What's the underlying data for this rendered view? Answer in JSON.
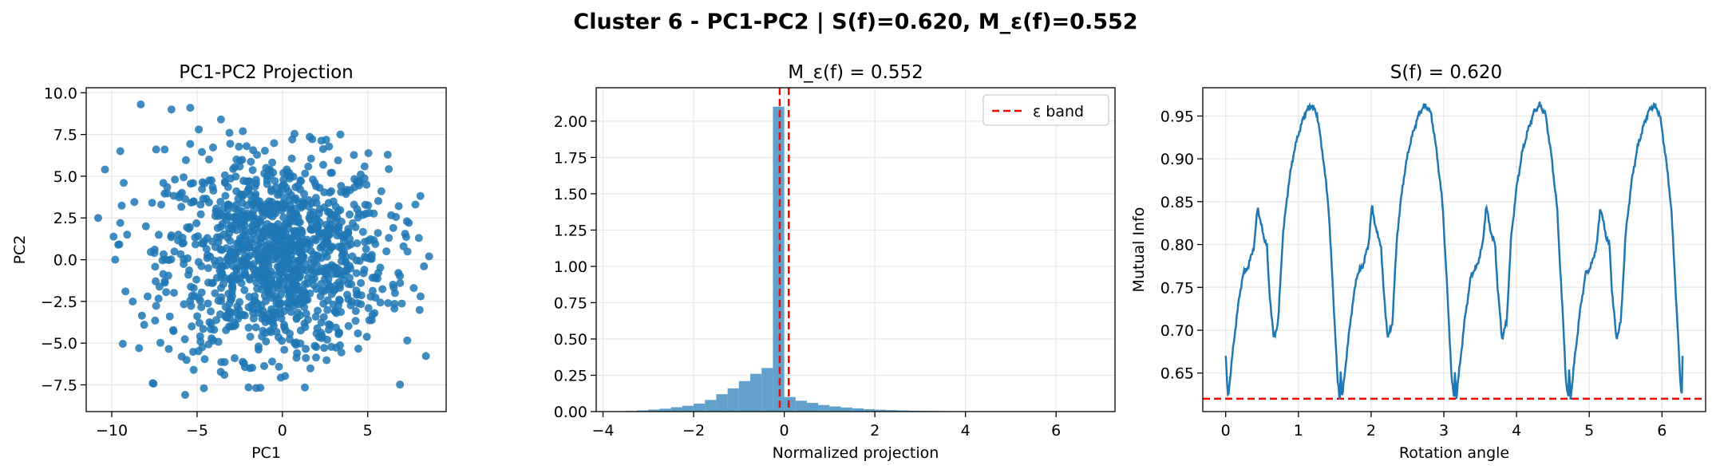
{
  "suptitle": "Cluster 6 - PC1-PC2 | S(f)=0.620, M_ε(f)=0.552",
  "colors": {
    "primary": "#1f77b4",
    "hist": "#62a1cc",
    "band": "#ff0000",
    "grid": "#e8e8e8",
    "axis": "#000000"
  },
  "chart_data": [
    {
      "type": "scatter",
      "title": "PC1-PC2 Projection",
      "xlabel": "PC1",
      "ylabel": "PC2",
      "xlim": [
        -11.5,
        9.6
      ],
      "ylim": [
        -9.1,
        10.3
      ],
      "xticks": [
        -10,
        -5,
        0,
        5
      ],
      "yticks": [
        -7.5,
        -5.0,
        -2.5,
        0.0,
        2.5,
        5.0,
        7.5,
        10.0
      ],
      "xtick_labels": [
        "−10",
        "−5",
        "0",
        "5"
      ],
      "ytick_labels": [
        "−7.5",
        "−5.0",
        "−2.5",
        "0.0",
        "2.5",
        "5.0",
        "7.5",
        "10.0"
      ],
      "grid": true,
      "points": [
        [
          -10.8,
          2.5
        ],
        [
          -10.4,
          5.4
        ],
        [
          -9.8,
          0
        ],
        [
          -9.5,
          6.5
        ],
        [
          -9.5,
          2.2
        ],
        [
          -9.3,
          4.6
        ],
        [
          -9.2,
          -1.9
        ],
        [
          -9.1,
          1.5
        ],
        [
          -8.3,
          9.3
        ],
        [
          -8.1,
          -3.9
        ],
        [
          -8.4,
          -5.3
        ],
        [
          -7.9,
          -2.2
        ],
        [
          -7.6,
          -7.4
        ],
        [
          -7.4,
          6.6
        ],
        [
          -7.1,
          3.3
        ],
        [
          -6.9,
          6.6
        ],
        [
          -6.5,
          9.0
        ],
        [
          -6.9,
          -1.3
        ],
        [
          -6.3,
          4.8
        ],
        [
          -6.1,
          1.5
        ],
        [
          -5.9,
          -5.8
        ],
        [
          -5.7,
          -8.1
        ],
        [
          -5.4,
          9.1
        ],
        [
          -5.2,
          -6.6
        ],
        [
          -4.9,
          7.8
        ],
        [
          -4.8,
          -4.9
        ],
        [
          -4.6,
          -7.7
        ],
        [
          -4.3,
          6.0
        ],
        [
          -4.2,
          -3.1
        ],
        [
          -3.9,
          2.9
        ],
        [
          -3.6,
          8.4
        ],
        [
          -3.4,
          -6.9
        ],
        [
          -3.1,
          7.6
        ],
        [
          -2.8,
          -5.9
        ],
        [
          -2.7,
          4.1
        ],
        [
          -2.3,
          -3.3
        ],
        [
          -2.1,
          6.8
        ],
        [
          -1.9,
          -6.5
        ],
        [
          -1.5,
          1.9
        ],
        [
          -1.2,
          -4.6
        ],
        [
          -0.9,
          5.0
        ],
        [
          -0.6,
          -6.1
        ],
        [
          -0.3,
          3.1
        ],
        [
          0.1,
          -3.9
        ],
        [
          0.4,
          5.2
        ],
        [
          0.8,
          -5.1
        ],
        [
          1.1,
          1.4
        ],
        [
          1.5,
          -3.6
        ],
        [
          1.9,
          4.6
        ],
        [
          2.3,
          -4.7
        ],
        [
          2.6,
          1.1
        ],
        [
          3.1,
          -3.1
        ],
        [
          3.4,
          7.5
        ],
        [
          3.8,
          -2.1
        ],
        [
          4.2,
          3.3
        ],
        [
          4.6,
          -1.4
        ],
        [
          5.1,
          2.8
        ],
        [
          5.4,
          -3.2
        ],
        [
          5.8,
          4.1
        ],
        [
          6.2,
          -2.6
        ],
        [
          6.5,
          1.9
        ],
        [
          6.9,
          -1.4
        ],
        [
          7.3,
          2.3
        ],
        [
          7.7,
          -1.7
        ],
        [
          8.0,
          1.3
        ],
        [
          8.3,
          -0.4
        ],
        [
          8.6,
          0.2
        ],
        [
          8.1,
          -2.2
        ],
        [
          7.8,
          3.3
        ],
        [
          7.1,
          0.8
        ],
        [
          6.8,
          -0.8
        ],
        [
          6.1,
          0.5
        ],
        [
          -3.5,
          -0.4
        ],
        [
          -2.8,
          0.3
        ],
        [
          -1.9,
          -1.1
        ],
        [
          -1.0,
          0.6
        ],
        [
          0.0,
          -0.3
        ],
        [
          0.9,
          0.9
        ],
        [
          1.7,
          -0.6
        ],
        [
          2.5,
          0.4
        ],
        [
          3.4,
          -0.9
        ],
        [
          4.1,
          0.2
        ],
        [
          -4.4,
          1.3
        ],
        [
          -5.2,
          -1.7
        ],
        [
          -3.0,
          -2.4
        ],
        [
          -2.2,
          2.6
        ],
        [
          -0.4,
          -2.2
        ],
        [
          0.6,
          2.5
        ],
        [
          1.3,
          -2.0
        ],
        [
          2.8,
          2.1
        ],
        [
          3.6,
          1.1
        ],
        [
          4.8,
          -0.6
        ],
        [
          -6.0,
          3.9
        ],
        [
          -6.6,
          -3.4
        ],
        [
          -5.8,
          1.0
        ],
        [
          -4.0,
          -4.2
        ],
        [
          -1.4,
          -5.2
        ],
        [
          -0.2,
          4.0
        ],
        [
          2.0,
          3.4
        ],
        [
          4.4,
          -2.6
        ],
        [
          5.6,
          1.6
        ],
        [
          6.6,
          -2.0
        ],
        [
          -7.5,
          0.4
        ],
        [
          -8.0,
          2.0
        ]
      ]
    },
    {
      "type": "bar",
      "title": "M_ε(f) = 0.552",
      "xlabel": "Normalized projection",
      "ylabel": "",
      "xlim": [
        -4.15,
        7.3
      ],
      "ylim": [
        0,
        2.23
      ],
      "xticks": [
        -4,
        -2,
        0,
        2,
        4,
        6
      ],
      "yticks": [
        0.0,
        0.25,
        0.5,
        0.75,
        1.0,
        1.25,
        1.5,
        1.75,
        2.0
      ],
      "xtick_labels": [
        "−4",
        "−2",
        "0",
        "2",
        "4",
        "6"
      ],
      "ytick_labels": [
        "0.00",
        "0.25",
        "0.50",
        "0.75",
        "1.00",
        "1.25",
        "1.50",
        "1.75",
        "2.00"
      ],
      "grid": true,
      "bin_width": 0.25,
      "bin_start": -3.75,
      "values": [
        0.002,
        0.004,
        0.008,
        0.014,
        0.02,
        0.03,
        0.04,
        0.055,
        0.08,
        0.12,
        0.16,
        0.21,
        0.26,
        0.3,
        2.1,
        0.1,
        0.075,
        0.06,
        0.045,
        0.035,
        0.028,
        0.022,
        0.017,
        0.013,
        0.01,
        0.008,
        0.006,
        0.005,
        0.004,
        0.003,
        0.002,
        0.002,
        0.001,
        0.001,
        0.001,
        0.001,
        0.001,
        0.001,
        0.001,
        0.001
      ],
      "band": [
        -0.1,
        0.1
      ],
      "legend": {
        "label": "ε band",
        "placement": "upper right"
      }
    },
    {
      "type": "line",
      "title": "S(f) = 0.620",
      "xlabel": "Rotation angle",
      "ylabel": "Mutual Info",
      "xlim": [
        -0.315,
        6.6
      ],
      "ylim": [
        0.605,
        0.983
      ],
      "xticks": [
        0,
        1,
        2,
        3,
        4,
        5,
        6
      ],
      "yticks": [
        0.65,
        0.7,
        0.75,
        0.8,
        0.85,
        0.9,
        0.95
      ],
      "xtick_labels": [
        "0",
        "1",
        "2",
        "3",
        "4",
        "5",
        "6"
      ],
      "ytick_labels": [
        "0.65",
        "0.70",
        "0.75",
        "0.80",
        "0.85",
        "0.90",
        "0.95"
      ],
      "grid": true,
      "hline": 0.62,
      "x_start": 0,
      "x_end": 6.283,
      "period": 1.5708,
      "profile_t": [
        0,
        0.02,
        0.05,
        0.1,
        0.15,
        0.2,
        0.25,
        0.28,
        0.3,
        0.33,
        0.36,
        0.38,
        0.42,
        0.46,
        0.5,
        0.55,
        0.6,
        0.65,
        0.7,
        0.75,
        0.8,
        0.85,
        0.9,
        0.95,
        0.98,
        1
      ],
      "profile_y": [
        0.67,
        0.62,
        0.66,
        0.72,
        0.765,
        0.775,
        0.8,
        0.845,
        0.83,
        0.81,
        0.8,
        0.75,
        0.69,
        0.71,
        0.81,
        0.87,
        0.91,
        0.935,
        0.955,
        0.963,
        0.952,
        0.905,
        0.845,
        0.72,
        0.64,
        0.62
      ]
    }
  ]
}
